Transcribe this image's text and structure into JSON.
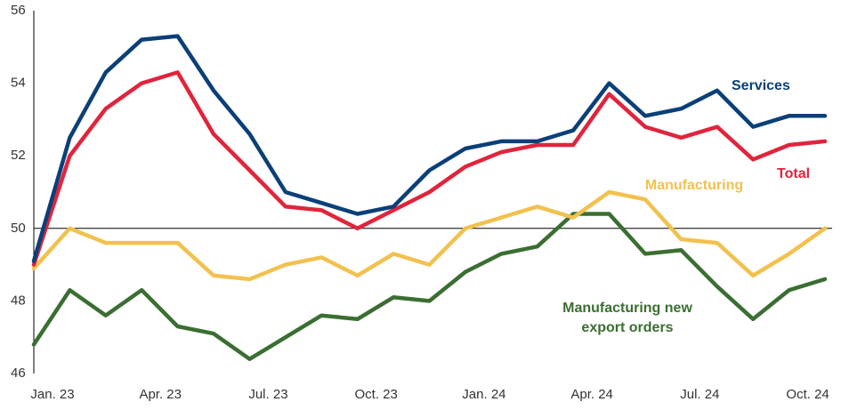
{
  "chart_data": {
    "type": "line",
    "title": "",
    "xlabel": "",
    "ylabel": "",
    "ylim": [
      46,
      56
    ],
    "yticks": [
      46,
      48,
      50,
      52,
      54,
      56
    ],
    "reference_line": 50,
    "grid": false,
    "legend": "inline labels",
    "x": [
      "Jan. 23",
      "Feb. 23",
      "Mar. 23",
      "Apr. 23",
      "May 23",
      "Jun. 23",
      "Jul. 23",
      "Aug. 23",
      "Sep. 23",
      "Oct. 23",
      "Nov. 23",
      "Dec. 23",
      "Jan. 24",
      "Feb. 24",
      "Mar. 24",
      "Apr. 24",
      "May 24",
      "Jun. 24",
      "Jul. 24",
      "Aug. 24",
      "Sep. 24",
      "Oct. 24",
      "Nov. 24"
    ],
    "xtick_labels": [
      {
        "index": 0,
        "label": "Jan. 23"
      },
      {
        "index": 3,
        "label": "Apr. 23"
      },
      {
        "index": 6,
        "label": "Jul. 23"
      },
      {
        "index": 9,
        "label": "Oct. 23"
      },
      {
        "index": 12,
        "label": "Jan. 24"
      },
      {
        "index": 15,
        "label": "Apr. 24"
      },
      {
        "index": 18,
        "label": "Jul. 24"
      },
      {
        "index": 21,
        "label": "Oct. 24"
      }
    ],
    "series": [
      {
        "name": "Services",
        "color": "#0b3f78",
        "label_lines": [
          "Services"
        ],
        "values": [
          49.1,
          52.5,
          54.3,
          55.2,
          55.3,
          53.8,
          52.6,
          51.0,
          50.7,
          50.4,
          50.6,
          51.6,
          52.2,
          52.4,
          52.4,
          52.7,
          54.0,
          53.1,
          53.3,
          53.8,
          52.8,
          53.1,
          53.1
        ]
      },
      {
        "name": "Total",
        "color": "#e0243c",
        "label_lines": [
          "Total"
        ],
        "values": [
          49.0,
          52.0,
          53.3,
          54.0,
          54.3,
          52.6,
          51.6,
          50.6,
          50.5,
          50.0,
          50.5,
          51.0,
          51.7,
          52.1,
          52.3,
          52.3,
          53.7,
          52.8,
          52.5,
          52.8,
          51.9,
          52.3,
          52.4
        ]
      },
      {
        "name": "Manufacturing",
        "color": "#f2c14e",
        "label_lines": [
          "Manufacturing"
        ],
        "values": [
          48.9,
          50.0,
          49.6,
          49.6,
          49.6,
          48.7,
          48.6,
          49.0,
          49.2,
          48.7,
          49.3,
          49.0,
          50.0,
          50.3,
          50.6,
          50.3,
          51.0,
          50.8,
          49.7,
          49.6,
          48.7,
          49.3,
          50.0
        ]
      },
      {
        "name": "Manufacturing new export orders",
        "color": "#3b6e32",
        "label_lines": [
          "Manufacturing new",
          "export orders"
        ],
        "values": [
          46.8,
          48.3,
          47.6,
          48.3,
          47.3,
          47.1,
          46.4,
          47.0,
          47.6,
          47.5,
          48.1,
          48.0,
          48.8,
          49.3,
          49.5,
          50.4,
          50.4,
          49.3,
          49.4,
          48.4,
          47.5,
          48.3,
          48.6
        ]
      }
    ]
  }
}
